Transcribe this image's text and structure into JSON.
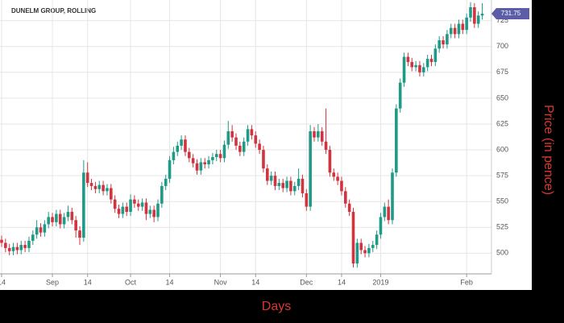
{
  "chart_data": {
    "type": "candlestick",
    "title": "DUNELM GROUP, ROLLING",
    "x_label": "Days",
    "y_label": "Price (in pence)",
    "categories": [
      "14",
      null,
      null,
      null,
      null,
      null,
      null,
      null,
      null,
      null,
      null,
      null,
      null,
      "Sep",
      null,
      null,
      null,
      null,
      null,
      null,
      null,
      null,
      "14",
      null,
      null,
      null,
      null,
      null,
      null,
      null,
      null,
      null,
      null,
      "Oct",
      null,
      null,
      null,
      null,
      null,
      null,
      null,
      null,
      null,
      "14",
      null,
      null,
      null,
      null,
      null,
      null,
      null,
      null,
      null,
      null,
      null,
      null,
      "Nov",
      null,
      null,
      null,
      null,
      null,
      null,
      null,
      null,
      "14",
      null,
      null,
      null,
      null,
      null,
      null,
      null,
      null,
      null,
      null,
      null,
      null,
      "Dec",
      null,
      null,
      null,
      null,
      null,
      null,
      null,
      null,
      "14",
      null,
      null,
      null,
      null,
      null,
      null,
      null,
      null,
      null,
      "2019",
      null,
      null,
      null,
      null,
      null,
      null,
      null,
      null,
      null,
      null,
      null,
      null,
      null,
      null,
      null,
      null,
      null,
      null,
      null,
      null,
      null,
      "Feb",
      null,
      null,
      null,
      null
    ],
    "open": [
      513,
      510,
      505,
      502,
      506,
      503,
      508,
      505,
      512,
      518,
      525,
      520,
      528,
      535,
      530,
      538,
      528,
      535,
      540,
      532,
      522,
      515,
      578,
      568,
      565,
      562,
      566,
      560,
      563,
      552,
      543,
      538,
      545,
      540,
      552,
      548,
      545,
      549,
      538,
      542,
      535,
      548,
      565,
      572,
      590,
      598,
      604,
      610,
      598,
      592,
      587,
      580,
      588,
      586,
      590,
      593,
      596,
      592,
      605,
      618,
      612,
      604,
      598,
      608,
      620,
      614,
      606,
      600,
      582,
      570,
      575,
      565,
      568,
      563,
      570,
      560,
      565,
      572,
      558,
      545,
      618,
      612,
      618,
      608,
      600,
      578,
      574,
      570,
      560,
      548,
      540,
      490,
      510,
      503,
      500,
      505,
      508,
      518,
      535,
      545,
      532,
      578,
      640,
      665,
      690,
      685,
      680,
      682,
      675,
      680,
      688,
      685,
      698,
      706,
      702,
      712,
      718,
      712,
      722,
      716,
      728,
      738,
      722,
      730
    ],
    "high": [
      517,
      514,
      509,
      510,
      510,
      512,
      512,
      516,
      522,
      532,
      529,
      532,
      540,
      539,
      542,
      542,
      539,
      546,
      544,
      536,
      526,
      590,
      588,
      572,
      569,
      570,
      570,
      567,
      567,
      556,
      547,
      549,
      549,
      557,
      556,
      552,
      553,
      553,
      546,
      546,
      552,
      569,
      576,
      594,
      603,
      608,
      614,
      614,
      602,
      596,
      591,
      592,
      592,
      594,
      597,
      600,
      600,
      609,
      628,
      624,
      616,
      608,
      612,
      624,
      624,
      618,
      610,
      604,
      586,
      579,
      579,
      572,
      572,
      574,
      574,
      569,
      582,
      576,
      562,
      624,
      622,
      625,
      622,
      640,
      604,
      582,
      578,
      574,
      564,
      552,
      544,
      514,
      514,
      507,
      509,
      512,
      522,
      539,
      549,
      552,
      582,
      644,
      669,
      694,
      694,
      689,
      686,
      686,
      684,
      692,
      692,
      702,
      710,
      710,
      716,
      722,
      722,
      726,
      726,
      732,
      743,
      742,
      734,
      742
    ],
    "low": [
      506,
      501,
      498,
      498,
      499,
      499,
      501,
      501,
      508,
      514,
      516,
      516,
      524,
      526,
      526,
      524,
      524,
      531,
      528,
      515,
      508,
      511,
      564,
      561,
      558,
      558,
      556,
      556,
      548,
      539,
      534,
      534,
      536,
      536,
      544,
      541,
      541,
      532,
      534,
      530,
      531,
      544,
      561,
      568,
      586,
      594,
      600,
      594,
      588,
      583,
      576,
      576,
      582,
      582,
      586,
      589,
      588,
      588,
      601,
      608,
      600,
      594,
      594,
      604,
      610,
      602,
      596,
      578,
      566,
      566,
      561,
      561,
      559,
      559,
      556,
      556,
      561,
      554,
      541,
      541,
      608,
      608,
      604,
      596,
      574,
      570,
      566,
      556,
      544,
      536,
      486,
      486,
      499,
      496,
      496,
      501,
      504,
      514,
      531,
      528,
      528,
      574,
      636,
      661,
      681,
      676,
      676,
      671,
      671,
      676,
      681,
      681,
      694,
      698,
      698,
      708,
      708,
      708,
      712,
      712,
      724,
      718,
      718,
      726
    ],
    "close": [
      510,
      505,
      502,
      506,
      503,
      508,
      505,
      512,
      518,
      525,
      520,
      528,
      535,
      530,
      538,
      528,
      535,
      540,
      532,
      522,
      515,
      578,
      568,
      565,
      562,
      566,
      560,
      563,
      552,
      543,
      538,
      545,
      540,
      552,
      548,
      545,
      549,
      538,
      542,
      535,
      548,
      565,
      572,
      590,
      598,
      604,
      610,
      598,
      592,
      587,
      580,
      588,
      586,
      590,
      593,
      596,
      592,
      605,
      618,
      612,
      604,
      598,
      608,
      620,
      614,
      606,
      600,
      582,
      570,
      575,
      565,
      568,
      563,
      570,
      560,
      565,
      572,
      558,
      545,
      618,
      612,
      618,
      608,
      600,
      578,
      574,
      570,
      560,
      548,
      540,
      490,
      510,
      503,
      500,
      505,
      508,
      518,
      535,
      545,
      532,
      578,
      640,
      665,
      690,
      685,
      680,
      682,
      675,
      680,
      688,
      685,
      698,
      706,
      702,
      712,
      718,
      712,
      722,
      716,
      728,
      738,
      722,
      730,
      731.75
    ],
    "up_color": "#1f9a86",
    "down_color": "#d1343f",
    "tag_color": "#5b5ea6",
    "ylim": [
      480,
      745
    ],
    "yticks": [
      500,
      525,
      550,
      575,
      600,
      625,
      650,
      675,
      700,
      725
    ],
    "grid": true
  }
}
